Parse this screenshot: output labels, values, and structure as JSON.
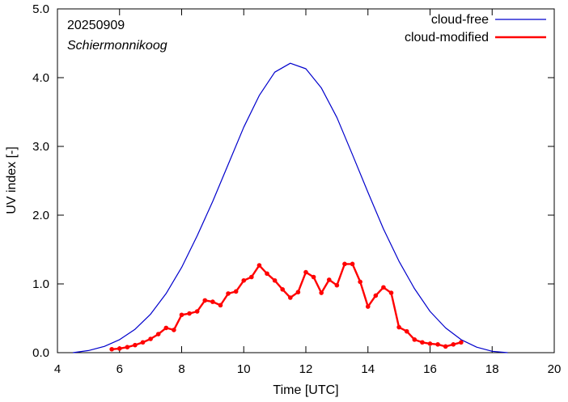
{
  "chart_data": {
    "type": "line",
    "annotations": {
      "date": "20250909",
      "location": "Schiermonnikoog"
    },
    "xlabel": "Time  [UTC]",
    "ylabel": "UV index  [-]",
    "xlim": [
      4,
      20
    ],
    "ylim": [
      0,
      5
    ],
    "x_ticks": [
      4,
      6,
      8,
      10,
      12,
      14,
      16,
      18,
      20
    ],
    "y_ticks": [
      0,
      1,
      2,
      3,
      4,
      5
    ],
    "x_tick_labels": [
      "4",
      "6",
      "8",
      "10",
      "12",
      "14",
      "16",
      "18",
      "20"
    ],
    "y_tick_labels": [
      "0.0",
      "1.0",
      "2.0",
      "3.0",
      "4.0",
      "5.0"
    ],
    "grid": false,
    "legend_position": "top-right",
    "series": [
      {
        "name": "cloud-free",
        "color": "#0000cc",
        "style": "line",
        "x": [
          4.5,
          5.0,
          5.5,
          6.0,
          6.5,
          7.0,
          7.5,
          8.0,
          8.5,
          9.0,
          9.5,
          10.0,
          10.5,
          11.0,
          11.5,
          12.0,
          12.5,
          13.0,
          13.5,
          14.0,
          14.5,
          15.0,
          15.5,
          16.0,
          16.5,
          17.0,
          17.5,
          18.0,
          18.5
        ],
        "y": [
          0.0,
          0.03,
          0.09,
          0.19,
          0.34,
          0.56,
          0.86,
          1.24,
          1.7,
          2.2,
          2.74,
          3.28,
          3.74,
          4.08,
          4.21,
          4.13,
          3.85,
          3.42,
          2.88,
          2.33,
          1.8,
          1.33,
          0.93,
          0.6,
          0.36,
          0.19,
          0.08,
          0.02,
          0.0
        ]
      },
      {
        "name": "cloud-modified",
        "color": "#ff0000",
        "style": "line-points",
        "x": [
          5.75,
          6.0,
          6.25,
          6.5,
          6.75,
          7.0,
          7.25,
          7.5,
          7.75,
          8.0,
          8.25,
          8.5,
          8.75,
          9.0,
          9.25,
          9.5,
          9.75,
          10.0,
          10.25,
          10.5,
          10.75,
          11.0,
          11.25,
          11.5,
          11.75,
          12.0,
          12.25,
          12.5,
          12.75,
          13.0,
          13.25,
          13.5,
          13.75,
          14.0,
          14.25,
          14.5,
          14.75,
          15.0,
          15.25,
          15.5,
          15.75,
          16.0,
          16.25,
          16.5,
          16.75,
          17.0
        ],
        "y": [
          0.05,
          0.06,
          0.08,
          0.11,
          0.15,
          0.2,
          0.27,
          0.36,
          0.33,
          0.55,
          0.57,
          0.6,
          0.76,
          0.74,
          0.69,
          0.86,
          0.89,
          1.05,
          1.1,
          1.27,
          1.15,
          1.05,
          0.92,
          0.8,
          0.88,
          1.17,
          1.1,
          0.87,
          1.06,
          0.98,
          1.29,
          1.29,
          1.03,
          0.67,
          0.83,
          0.95,
          0.87,
          0.37,
          0.31,
          0.19,
          0.15,
          0.13,
          0.12,
          0.09,
          0.12,
          0.15
        ]
      }
    ]
  }
}
